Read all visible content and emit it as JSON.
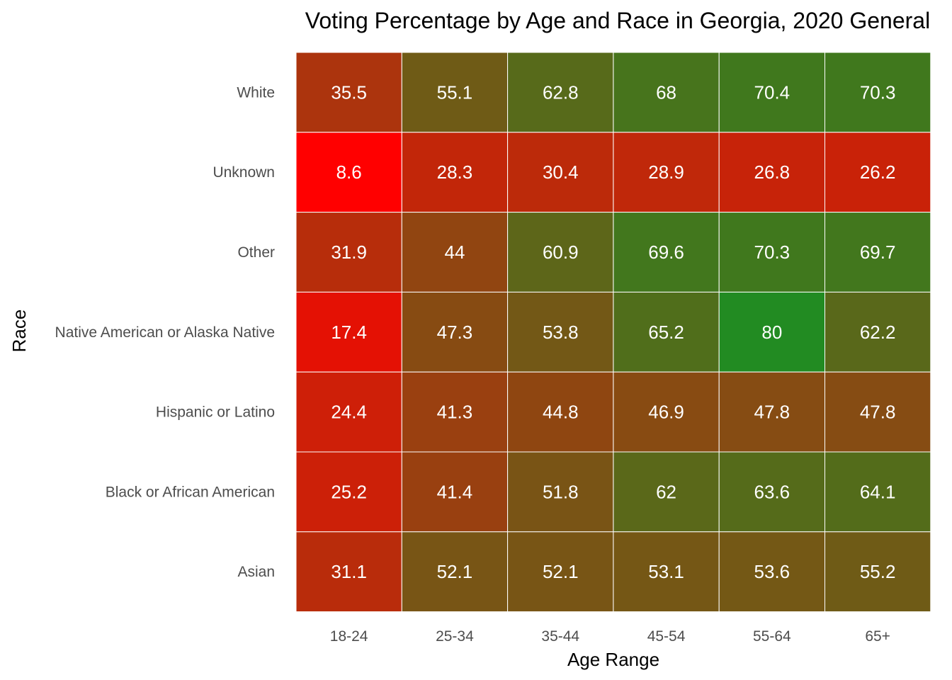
{
  "chart_data": {
    "type": "heatmap",
    "title": "Voting Percentage by Age and Race in Georgia, 2020 General",
    "xlabel": "Age Range",
    "ylabel": "Race",
    "x_categories": [
      "18-24",
      "25-34",
      "35-44",
      "45-54",
      "55-64",
      "65+"
    ],
    "y_categories": [
      "White",
      "Unknown",
      "Other",
      "Native American or Alaska Native",
      "Hispanic or Latino",
      "Black or African American",
      "Asian"
    ],
    "values": [
      [
        35.5,
        55.1,
        62.8,
        68,
        70.4,
        70.3
      ],
      [
        8.6,
        28.3,
        30.4,
        28.9,
        26.8,
        26.2
      ],
      [
        31.9,
        44,
        60.9,
        69.6,
        70.3,
        69.7
      ],
      [
        17.4,
        47.3,
        53.8,
        65.2,
        80,
        62.2
      ],
      [
        24.4,
        41.3,
        44.8,
        46.9,
        47.8,
        47.8
      ],
      [
        25.2,
        41.4,
        51.8,
        62,
        63.6,
        64.1
      ],
      [
        31.1,
        52.1,
        52.1,
        53.1,
        53.6,
        55.2
      ]
    ],
    "color_scale": {
      "low_color": "#ff0000",
      "high_color": "#228b22",
      "range": [
        8.6,
        80
      ]
    },
    "cell_border_color": "#ffffff",
    "label_color": "#ffffff",
    "grid": false,
    "legend": "none"
  }
}
